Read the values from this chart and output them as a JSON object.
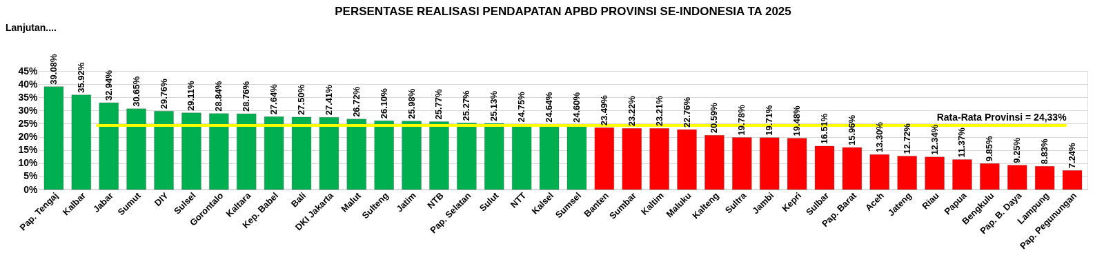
{
  "chart_data": {
    "type": "bar",
    "title": "PERSENTASE REALISASI PENDAPATAN APBD PROVINSI SE-INDONESIA TA 2025",
    "annotations": [
      "Lanjutan...."
    ],
    "categories": [
      "Pap. Tengaj",
      "Kalbar",
      "Jabar",
      "Sumut",
      "DIY",
      "Sulsel",
      "Gorontalo",
      "Kaltara",
      "Kep. Babel",
      "Bali",
      "DKI Jakarta",
      "Malut",
      "Sulteng",
      "Jatim",
      "NTB",
      "Pap. Selatan",
      "Sulut",
      "NTT",
      "Kalsel",
      "Sumsel",
      "Banten",
      "Sumbar",
      "Kaltim",
      "Maluku",
      "Kalteng",
      "Sultra",
      "Jambi",
      "Kepri",
      "Sulbar",
      "Pap. Barat",
      "Aceh",
      "Jateng",
      "Riau",
      "Papua",
      "Bengkulu",
      "Pap. B. Daya",
      "Lampung",
      "Pap. Pegunungan"
    ],
    "values": [
      39.08,
      35.92,
      32.94,
      30.65,
      29.76,
      29.11,
      28.84,
      28.76,
      27.64,
      27.5,
      27.41,
      26.72,
      26.1,
      25.98,
      25.77,
      25.27,
      25.13,
      24.75,
      24.64,
      24.6,
      23.49,
      23.22,
      23.21,
      22.76,
      20.59,
      19.78,
      19.71,
      19.48,
      16.51,
      15.96,
      13.3,
      12.72,
      12.34,
      11.37,
      9.85,
      9.25,
      8.83,
      7.24
    ],
    "value_labels": [
      "39.08%",
      "35.92%",
      "32.94%",
      "30.65%",
      "29.76%",
      "29.11%",
      "28.84%",
      "28.76%",
      "27.64%",
      "27.50%",
      "27.41%",
      "26.72%",
      "26.10%",
      "25.98%",
      "25.77%",
      "25.27%",
      "25.13%",
      "24.75%",
      "24.64%",
      "24.60%",
      "23.49%",
      "23.22%",
      "23.21%",
      "22.76%",
      "20.59%",
      "19.78%",
      "19.71%",
      "19.48%",
      "16.51%",
      "15.96%",
      "13.30%",
      "12.72%",
      "12.34%",
      "11.37%",
      "9.85%",
      "9.25%",
      "8.83%",
      "7.24%"
    ],
    "colors": [
      "#00b050",
      "#00b050",
      "#00b050",
      "#00b050",
      "#00b050",
      "#00b050",
      "#00b050",
      "#00b050",
      "#00b050",
      "#00b050",
      "#00b050",
      "#00b050",
      "#00b050",
      "#00b050",
      "#00b050",
      "#00b050",
      "#00b050",
      "#00b050",
      "#00b050",
      "#00b050",
      "#ff0000",
      "#ff0000",
      "#ff0000",
      "#ff0000",
      "#ff0000",
      "#ff0000",
      "#ff0000",
      "#ff0000",
      "#ff0000",
      "#ff0000",
      "#ff0000",
      "#ff0000",
      "#ff0000",
      "#ff0000",
      "#ff0000",
      "#ff0000",
      "#ff0000",
      "#ff0000"
    ],
    "ylim": [
      0,
      45
    ],
    "yticks": [
      {
        "value": 0,
        "label": "0%"
      },
      {
        "value": 5,
        "label": "5%"
      },
      {
        "value": 10,
        "label": "10%"
      },
      {
        "value": 15,
        "label": "15%"
      },
      {
        "value": 20,
        "label": "20%"
      },
      {
        "value": 25,
        "label": "25%"
      },
      {
        "value": 30,
        "label": "30%"
      },
      {
        "value": 35,
        "label": "35%"
      },
      {
        "value": 40,
        "label": "40%"
      },
      {
        "value": 45,
        "label": "45%"
      }
    ],
    "ref_lines": [
      {
        "axis": "y",
        "value": 24.33,
        "label": "Rata-Rata Provinsi = 24,33%",
        "color": "#ffff00"
      }
    ],
    "grid": "y"
  }
}
